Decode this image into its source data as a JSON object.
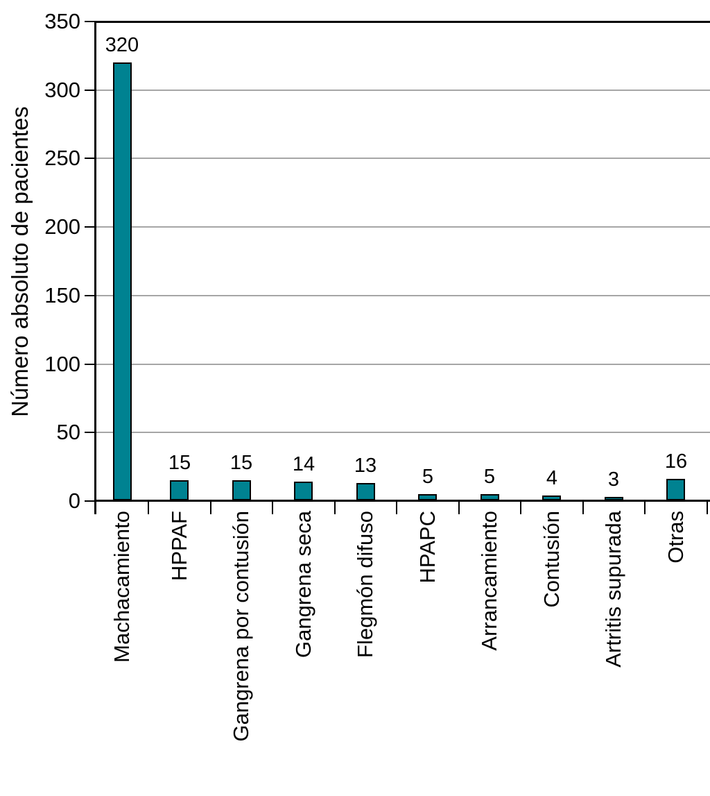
{
  "chart_data": {
    "type": "bar",
    "title": "",
    "ylabel": "Número absoluto de pacientes",
    "xlabel": "",
    "categories": [
      "Machacamiento",
      "HPPAF",
      "Gangrena por contusión",
      "Gangrena seca",
      "Flegmón difuso",
      "HPAPC",
      "Arrancamiento",
      "Contusión",
      "Artritis supurada",
      "Otras"
    ],
    "values": [
      320,
      15,
      15,
      14,
      13,
      5,
      5,
      4,
      3,
      16
    ],
    "data_labels": [
      "320",
      "15",
      "15",
      "14",
      "13",
      "5",
      "5",
      "4",
      "3",
      "16"
    ],
    "ylim": [
      0,
      350
    ],
    "yticks": [
      0,
      50,
      100,
      150,
      200,
      250,
      300,
      350
    ],
    "grid": "horizontal-gray-lines-50-to-300",
    "legend": "none",
    "colors": {
      "bar_fill": "#008291",
      "bar_border": "#000000",
      "gridline": "#A6A6A6",
      "axis": "#000000",
      "text": "#000000",
      "background": "#FFFFFF"
    }
  }
}
